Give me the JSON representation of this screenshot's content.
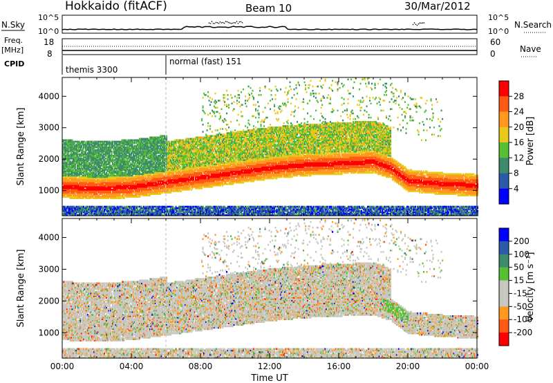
{
  "header": {
    "station": "Hokkaido (fitACF)",
    "beam": "Beam 10",
    "date": "30/Mar/2012"
  },
  "top_panels": {
    "nsky_label": "N.Sky",
    "nsky_ticks": [
      "10^5",
      "10^0"
    ],
    "nsearch_label": "N.Search",
    "nsearch_ticks": [
      "10^5",
      "10^0"
    ],
    "freq_label_1": "Freq.",
    "freq_label_2": "[MHz]",
    "freq_ticks": [
      "18",
      "8"
    ],
    "nave_label": "Nave",
    "nave_ticks": [
      "60",
      "0"
    ],
    "cpid_label": "CPID",
    "modes": [
      {
        "name": "themis 3300",
        "start_hour": 0
      },
      {
        "name": "normal (fast) 151",
        "start_hour": 6
      }
    ]
  },
  "colors": {
    "power_scale": [
      "#0000ff",
      "#2a5aa8",
      "#3e8a6c",
      "#56c035",
      "#e8c818",
      "#ff9a1e",
      "#ff5a14",
      "#ff0000"
    ],
    "velocity_scale": [
      "#ff0000",
      "#ff5a14",
      "#ff9a1e",
      "#c8c8c0",
      "#c8c8c0",
      "#56c035",
      "#3e8a6c",
      "#2a5aa8",
      "#0000ff"
    ]
  },
  "chart_data": [
    {
      "type": "heatmap",
      "name": "Power",
      "ylabel": "Slant Range [km]",
      "y_ticks": [
        1000,
        2000,
        3000,
        4000
      ],
      "ylim": [
        200,
        4600
      ],
      "xlim_hours": [
        0,
        24
      ],
      "colorbar_label": "Power [dB]",
      "colorbar_ticks": [
        "28",
        "24",
        "20",
        "16",
        "12",
        "8",
        "4"
      ],
      "main_echo_band_km": {
        "hours": [
          0,
          2,
          4,
          6,
          8,
          10,
          12,
          14,
          16,
          18,
          19,
          20,
          22,
          24
        ],
        "center": [
          1100,
          1050,
          1100,
          1250,
          1400,
          1550,
          1700,
          1800,
          1850,
          1900,
          1700,
          1300,
          1200,
          1150
        ]
      }
    },
    {
      "type": "heatmap",
      "name": "Velocity",
      "ylabel": "Slant Range [km]",
      "xlabel": "Time UT",
      "x_tick_labels": [
        "00:00",
        "04:00",
        "08:00",
        "12:00",
        "16:00",
        "20:00",
        "00:00"
      ],
      "y_ticks": [
        1000,
        2000,
        3000,
        4000
      ],
      "ylim": [
        200,
        4600
      ],
      "colorbar_label": "Velocity [m s⁻¹]",
      "colorbar_ticks": [
        "200",
        "100",
        "50",
        "15",
        "-15",
        "-50",
        "-100",
        "-200"
      ]
    }
  ]
}
